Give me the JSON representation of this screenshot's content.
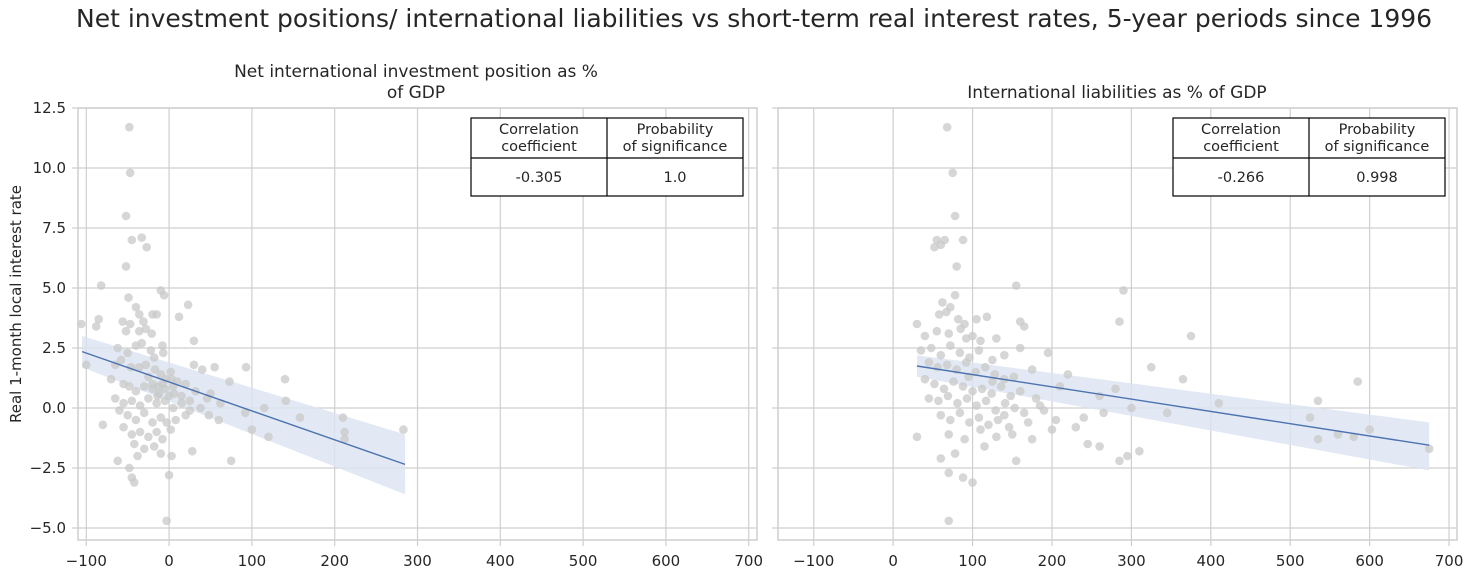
{
  "figure": {
    "title": "Net investment positions/ international liabilities vs short-term real interest rates, 5-year periods since 1996",
    "ylabel": "Real 1-month local interest rate"
  },
  "colors": {
    "scatter": "#c8c8c8",
    "line": "#4c72b0",
    "band": "#dbe4f1",
    "grid": "#cfcfcf",
    "axes": "#cfcfcf",
    "text": "#262626"
  },
  "chart_data": [
    {
      "type": "scatter",
      "title": "Net international investment position as %\nof GDP",
      "xlim": [
        -110,
        710
      ],
      "ylim": [
        -5.5,
        12.5
      ],
      "xticks": [
        -100,
        0,
        100,
        200,
        300,
        400,
        500,
        600,
        700
      ],
      "yticks": [
        -5.0,
        -2.5,
        0.0,
        2.5,
        5.0,
        7.5,
        10.0,
        12.5
      ],
      "grid": true,
      "regression": {
        "x": [
          -105,
          285
        ],
        "y": [
          2.35,
          -2.35
        ],
        "ci_lower": [
          1.7,
          -3.6
        ],
        "ci_upper": [
          3.0,
          -1.1
        ]
      },
      "table": {
        "headers": [
          "Correlation\ncoefficient",
          "Probability\nof significance"
        ],
        "values": [
          "-0.305",
          "1.0"
        ]
      },
      "points": [
        [
          -48,
          11.7
        ],
        [
          -47,
          9.8
        ],
        [
          -52,
          8.0
        ],
        [
          -45,
          7.0
        ],
        [
          -33,
          7.1
        ],
        [
          -27,
          6.7
        ],
        [
          -52,
          5.9
        ],
        [
          -82,
          5.1
        ],
        [
          -10,
          4.9
        ],
        [
          -6,
          4.7
        ],
        [
          23,
          4.3
        ],
        [
          -49,
          4.6
        ],
        [
          -40,
          4.2
        ],
        [
          -36,
          3.9
        ],
        [
          -31,
          3.6
        ],
        [
          -20,
          3.9
        ],
        [
          -15,
          3.9
        ],
        [
          -85,
          3.7
        ],
        [
          -88,
          3.4
        ],
        [
          -56,
          3.6
        ],
        [
          -52,
          3.2
        ],
        [
          -47,
          3.5
        ],
        [
          -28,
          3.3
        ],
        [
          -21,
          3.1
        ],
        [
          -36,
          3.2
        ],
        [
          12,
          3.8
        ],
        [
          -106,
          3.5
        ],
        [
          30,
          2.8
        ],
        [
          -62,
          2.5
        ],
        [
          -50,
          2.3
        ],
        [
          -40,
          2.6
        ],
        [
          -33,
          2.7
        ],
        [
          -22,
          2.4
        ],
        [
          -8,
          2.6
        ],
        [
          -18,
          2.1
        ],
        [
          -7,
          2.3
        ],
        [
          -100,
          1.8
        ],
        [
          -65,
          1.8
        ],
        [
          -58,
          2.0
        ],
        [
          -46,
          1.7
        ],
        [
          -36,
          1.7
        ],
        [
          -28,
          1.8
        ],
        [
          -17,
          1.6
        ],
        [
          -10,
          1.4
        ],
        [
          -4,
          1.2
        ],
        [
          2,
          1.5
        ],
        [
          10,
          1.1
        ],
        [
          20,
          1.0
        ],
        [
          30,
          1.8
        ],
        [
          40,
          1.6
        ],
        [
          55,
          1.7
        ],
        [
          73,
          1.1
        ],
        [
          -70,
          1.2
        ],
        [
          -55,
          1.0
        ],
        [
          -48,
          0.9
        ],
        [
          -40,
          0.7
        ],
        [
          -30,
          0.9
        ],
        [
          -20,
          0.8
        ],
        [
          -12,
          0.6
        ],
        [
          -5,
          0.8
        ],
        [
          0,
          0.5
        ],
        [
          5,
          0.9
        ],
        [
          15,
          0.5
        ],
        [
          25,
          0.3
        ],
        [
          32,
          0.7
        ],
        [
          46,
          0.4
        ],
        [
          -65,
          0.4
        ],
        [
          -55,
          0.2
        ],
        [
          -45,
          0.3
        ],
        [
          -35,
          0.1
        ],
        [
          -25,
          0.4
        ],
        [
          -15,
          0.2
        ],
        [
          -5,
          0.3
        ],
        [
          5,
          0.0
        ],
        [
          15,
          0.2
        ],
        [
          25,
          -0.1
        ],
        [
          38,
          0.0
        ],
        [
          48,
          -0.3
        ],
        [
          60,
          -0.5
        ],
        [
          -60,
          -0.1
        ],
        [
          -50,
          -0.3
        ],
        [
          -40,
          -0.5
        ],
        [
          -30,
          -0.2
        ],
        [
          -20,
          -0.6
        ],
        [
          -10,
          -0.4
        ],
        [
          -3,
          -0.6
        ],
        [
          8,
          -0.5
        ],
        [
          20,
          -0.3
        ],
        [
          -80,
          -0.7
        ],
        [
          -55,
          -0.8
        ],
        [
          -45,
          -1.1
        ],
        [
          -35,
          -1.0
        ],
        [
          -25,
          -1.2
        ],
        [
          -15,
          -1.0
        ],
        [
          -8,
          -1.3
        ],
        [
          2,
          -0.9
        ],
        [
          -42,
          -1.5
        ],
        [
          -30,
          -1.7
        ],
        [
          -18,
          -1.6
        ],
        [
          -10,
          -1.9
        ],
        [
          3,
          -2.0
        ],
        [
          28,
          -1.8
        ],
        [
          -62,
          -2.2
        ],
        [
          -48,
          -2.5
        ],
        [
          -38,
          -2.0
        ],
        [
          -45,
          -2.9
        ],
        [
          -42,
          -3.1
        ],
        [
          0,
          -2.8
        ],
        [
          -3,
          -4.7
        ],
        [
          -20,
          1.0
        ],
        [
          -25,
          1.3
        ],
        [
          -13,
          0.9
        ],
        [
          -8,
          1.0
        ],
        [
          3,
          1.2
        ],
        [
          6,
          0.6
        ],
        [
          -14,
          0.5
        ],
        [
          93,
          1.7
        ],
        [
          100,
          -0.9
        ],
        [
          115,
          0.0
        ],
        [
          120,
          -1.2
        ],
        [
          140,
          1.2
        ],
        [
          141,
          0.3
        ],
        [
          158,
          -0.4
        ],
        [
          210,
          -0.4
        ],
        [
          212,
          -1.0
        ],
        [
          212,
          -1.3
        ],
        [
          283,
          -0.9
        ],
        [
          75,
          -2.2
        ],
        [
          92,
          -0.2
        ],
        [
          62,
          0.2
        ],
        [
          50,
          0.6
        ]
      ]
    },
    {
      "type": "scatter",
      "title": "International liabilities as % of GDP",
      "xlim": [
        -145,
        710
      ],
      "ylim": [
        -5.5,
        12.5
      ],
      "xticks": [
        -100,
        0,
        100,
        200,
        300,
        400,
        500,
        600,
        700
      ],
      "yticks": [
        -5.0,
        -2.5,
        0.0,
        2.5,
        5.0,
        7.5,
        10.0,
        12.5
      ],
      "grid": true,
      "regression": {
        "x": [
          30,
          675
        ],
        "y": [
          1.75,
          -1.55
        ],
        "ci_lower": [
          1.3,
          -2.6
        ],
        "ci_upper": [
          2.2,
          -0.6
        ]
      },
      "table": {
        "headers": [
          "Correlation\ncoefficient",
          "Probability\nof significance"
        ],
        "values": [
          "-0.266",
          "0.998"
        ]
      },
      "points": [
        [
          68,
          11.7
        ],
        [
          75,
          9.8
        ],
        [
          78,
          8.0
        ],
        [
          55,
          7.0
        ],
        [
          60,
          6.8
        ],
        [
          65,
          7.0
        ],
        [
          88,
          7.0
        ],
        [
          52,
          6.7
        ],
        [
          80,
          5.9
        ],
        [
          155,
          5.1
        ],
        [
          78,
          4.7
        ],
        [
          62,
          4.4
        ],
        [
          72,
          4.2
        ],
        [
          67,
          4.0
        ],
        [
          290,
          4.9
        ],
        [
          105,
          3.7
        ],
        [
          118,
          3.8
        ],
        [
          160,
          3.6
        ],
        [
          165,
          3.4
        ],
        [
          58,
          3.9
        ],
        [
          82,
          3.7
        ],
        [
          90,
          3.5
        ],
        [
          285,
          3.6
        ],
        [
          30,
          3.5
        ],
        [
          40,
          3.0
        ],
        [
          55,
          3.2
        ],
        [
          70,
          3.1
        ],
        [
          85,
          3.3
        ],
        [
          92,
          2.9
        ],
        [
          100,
          3.0
        ],
        [
          110,
          2.8
        ],
        [
          130,
          2.9
        ],
        [
          375,
          3.0
        ],
        [
          35,
          2.4
        ],
        [
          48,
          2.5
        ],
        [
          60,
          2.2
        ],
        [
          72,
          2.6
        ],
        [
          84,
          2.3
        ],
        [
          96,
          2.1
        ],
        [
          108,
          2.4
        ],
        [
          125,
          2.0
        ],
        [
          140,
          2.2
        ],
        [
          160,
          2.5
        ],
        [
          195,
          2.3
        ],
        [
          45,
          1.9
        ],
        [
          56,
          1.7
        ],
        [
          68,
          1.8
        ],
        [
          80,
          1.6
        ],
        [
          92,
          1.9
        ],
        [
          104,
          1.5
        ],
        [
          116,
          1.7
        ],
        [
          128,
          1.4
        ],
        [
          140,
          1.2
        ],
        [
          152,
          1.3
        ],
        [
          175,
          1.6
        ],
        [
          220,
          1.4
        ],
        [
          325,
          1.7
        ],
        [
          365,
          1.2
        ],
        [
          40,
          1.2
        ],
        [
          52,
          1.0
        ],
        [
          64,
          0.8
        ],
        [
          76,
          1.1
        ],
        [
          88,
          0.9
        ],
        [
          100,
          0.7
        ],
        [
          112,
          0.8
        ],
        [
          124,
          0.6
        ],
        [
          136,
          0.9
        ],
        [
          148,
          0.5
        ],
        [
          160,
          0.7
        ],
        [
          180,
          0.4
        ],
        [
          280,
          0.8
        ],
        [
          410,
          0.2
        ],
        [
          45,
          0.4
        ],
        [
          57,
          0.3
        ],
        [
          69,
          0.5
        ],
        [
          81,
          0.2
        ],
        [
          93,
          0.4
        ],
        [
          105,
          0.1
        ],
        [
          117,
          0.3
        ],
        [
          129,
          -0.1
        ],
        [
          141,
          0.2
        ],
        [
          153,
          0.0
        ],
        [
          165,
          -0.2
        ],
        [
          190,
          -0.1
        ],
        [
          300,
          0.0
        ],
        [
          345,
          -0.2
        ],
        [
          535,
          0.3
        ],
        [
          60,
          -0.3
        ],
        [
          72,
          -0.5
        ],
        [
          84,
          -0.2
        ],
        [
          96,
          -0.6
        ],
        [
          108,
          -0.4
        ],
        [
          120,
          -0.7
        ],
        [
          132,
          -0.5
        ],
        [
          146,
          -0.8
        ],
        [
          170,
          -0.6
        ],
        [
          200,
          -0.9
        ],
        [
          240,
          -0.4
        ],
        [
          525,
          -0.4
        ],
        [
          600,
          -0.9
        ],
        [
          30,
          -1.2
        ],
        [
          70,
          -1.1
        ],
        [
          90,
          -1.3
        ],
        [
          110,
          -0.9
        ],
        [
          130,
          -1.2
        ],
        [
          150,
          -1.1
        ],
        [
          175,
          -1.3
        ],
        [
          245,
          -1.5
        ],
        [
          260,
          -1.6
        ],
        [
          310,
          -1.8
        ],
        [
          295,
          -2.0
        ],
        [
          285,
          -2.2
        ],
        [
          535,
          -1.3
        ],
        [
          560,
          -1.1
        ],
        [
          580,
          -1.2
        ],
        [
          675,
          -1.7
        ],
        [
          60,
          -2.1
        ],
        [
          78,
          -1.9
        ],
        [
          155,
          -2.2
        ],
        [
          70,
          -2.7
        ],
        [
          88,
          -2.9
        ],
        [
          100,
          -3.1
        ],
        [
          70,
          -4.7
        ],
        [
          585,
          1.1
        ],
        [
          205,
          -0.5
        ],
        [
          185,
          0.1
        ],
        [
          125,
          1.1
        ],
        [
          95,
          1.3
        ],
        [
          210,
          0.9
        ],
        [
          260,
          0.5
        ],
        [
          230,
          -0.8
        ],
        [
          265,
          -0.2
        ],
        [
          115,
          -1.6
        ],
        [
          140,
          -0.3
        ]
      ]
    }
  ]
}
